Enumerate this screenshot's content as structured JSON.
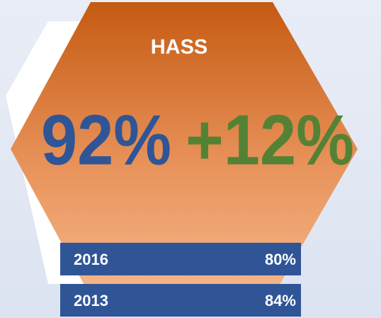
{
  "title": "HASS",
  "main_value": "92%",
  "change": "+12%",
  "rows": [
    [
      "2016",
      "80%"
    ],
    [
      "2013",
      "84%"
    ]
  ]
}
